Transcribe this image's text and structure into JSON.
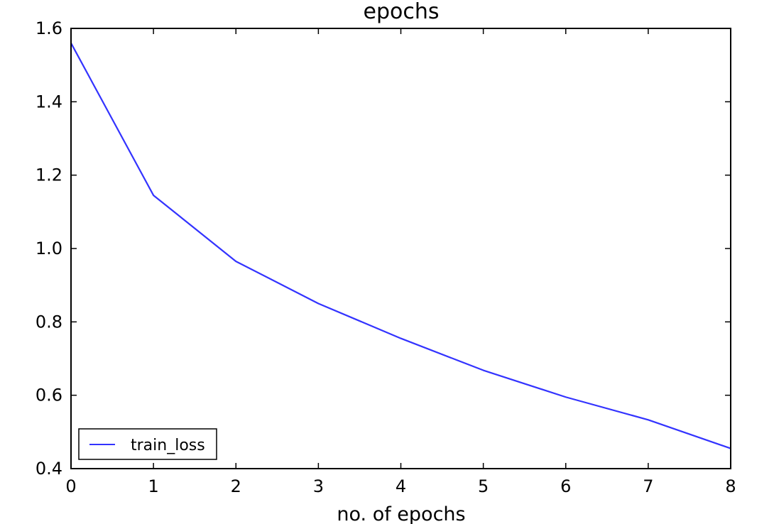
{
  "chart_data": {
    "type": "line",
    "title": "epochs",
    "xlabel": "no. of epochs",
    "ylabel": "",
    "xlim": [
      0,
      8
    ],
    "ylim": [
      0.4,
      1.6
    ],
    "xticks": [
      "0",
      "1",
      "2",
      "3",
      "4",
      "5",
      "6",
      "7",
      "8"
    ],
    "yticks": [
      "0.4",
      "0.6",
      "0.8",
      "1.0",
      "1.2",
      "1.4",
      "1.6"
    ],
    "grid": false,
    "legend_position": "lower-left",
    "series": [
      {
        "name": "train_loss",
        "color": "#3333ff",
        "x": [
          0,
          1,
          2,
          3,
          4,
          5,
          6,
          7,
          8
        ],
        "y": [
          1.56,
          1.145,
          0.965,
          0.85,
          0.755,
          0.668,
          0.595,
          0.533,
          0.455
        ]
      }
    ]
  }
}
